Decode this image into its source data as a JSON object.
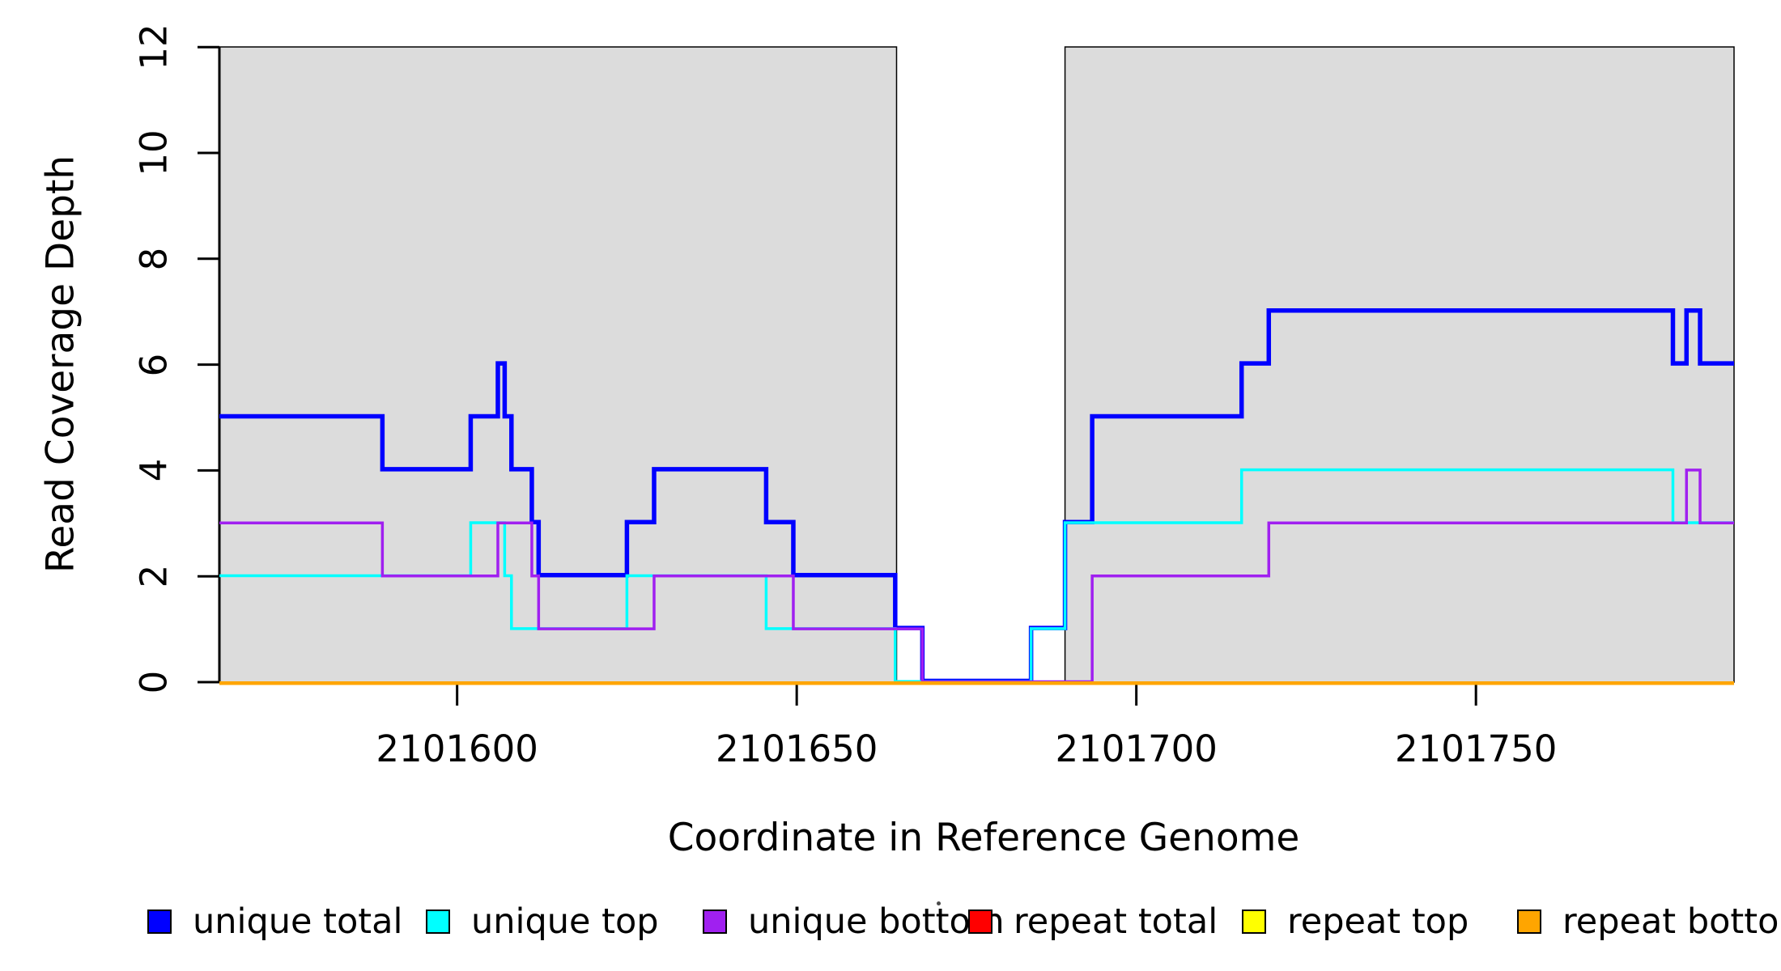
{
  "chart_data": {
    "type": "line",
    "subtype": "step-coverage",
    "title": "",
    "xlabel": "Coordinate in Reference Genome",
    "ylabel": "Read Coverage Depth",
    "xlim": [
      2101565,
      2101788
    ],
    "ylim": [
      0,
      12
    ],
    "x_ticks": [
      2101600,
      2101650,
      2101700,
      2101750
    ],
    "y_ticks": [
      0,
      2,
      4,
      6,
      8,
      10,
      12
    ],
    "grid": "off",
    "legend_position": "bottom-horizontal",
    "shade_color": "#DCDCDC",
    "shade_border_color": "#000000",
    "shaded_regions": [
      {
        "from": 2101565,
        "to": 2101664.7
      },
      {
        "from": 2101689.5,
        "to": 2101788
      }
    ],
    "series": [
      {
        "name": "unique total",
        "color": "#0000FF",
        "steps": [
          [
            2101565,
            5
          ],
          [
            2101589,
            4
          ],
          [
            2101602,
            5
          ],
          [
            2101606,
            6
          ],
          [
            2101607,
            5
          ],
          [
            2101608,
            4
          ],
          [
            2101611,
            3
          ],
          [
            2101612,
            2
          ],
          [
            2101625,
            3
          ],
          [
            2101629,
            4
          ],
          [
            2101645.5,
            3
          ],
          [
            2101649.5,
            2
          ],
          [
            2101664.5,
            1
          ],
          [
            2101668.5,
            0
          ],
          [
            2101684.5,
            1
          ],
          [
            2101689.5,
            3
          ],
          [
            2101693.5,
            5
          ],
          [
            2101715.5,
            6
          ],
          [
            2101719.5,
            7
          ],
          [
            2101779,
            6
          ],
          [
            2101781,
            7
          ],
          [
            2101783,
            6
          ]
        ]
      },
      {
        "name": "unique top",
        "color": "#00FFFF",
        "steps": [
          [
            2101565,
            2
          ],
          [
            2101602,
            3
          ],
          [
            2101607,
            2
          ],
          [
            2101608,
            1
          ],
          [
            2101625,
            2
          ],
          [
            2101645.5,
            1
          ],
          [
            2101664.5,
            0
          ],
          [
            2101684.5,
            1
          ],
          [
            2101689.5,
            3
          ],
          [
            2101715.5,
            4
          ],
          [
            2101779,
            3
          ]
        ]
      },
      {
        "name": "unique bottom",
        "color": "#A020F0",
        "steps": [
          [
            2101565,
            3
          ],
          [
            2101589,
            2
          ],
          [
            2101606,
            3
          ],
          [
            2101611,
            2
          ],
          [
            2101612,
            1
          ],
          [
            2101629,
            2
          ],
          [
            2101649.5,
            1
          ],
          [
            2101668.5,
            0
          ],
          [
            2101693.5,
            2
          ],
          [
            2101719.5,
            3
          ],
          [
            2101781,
            4
          ],
          [
            2101783,
            3
          ]
        ]
      },
      {
        "name": "repeat total",
        "color": "#FF0000",
        "steps": [
          [
            2101565,
            0
          ]
        ]
      },
      {
        "name": "repeat top",
        "color": "#FFFF00",
        "steps": [
          [
            2101565,
            0
          ]
        ]
      },
      {
        "name": "repeat bottom",
        "color": "#FFA500",
        "steps": [
          [
            2101565,
            0
          ]
        ]
      }
    ]
  }
}
